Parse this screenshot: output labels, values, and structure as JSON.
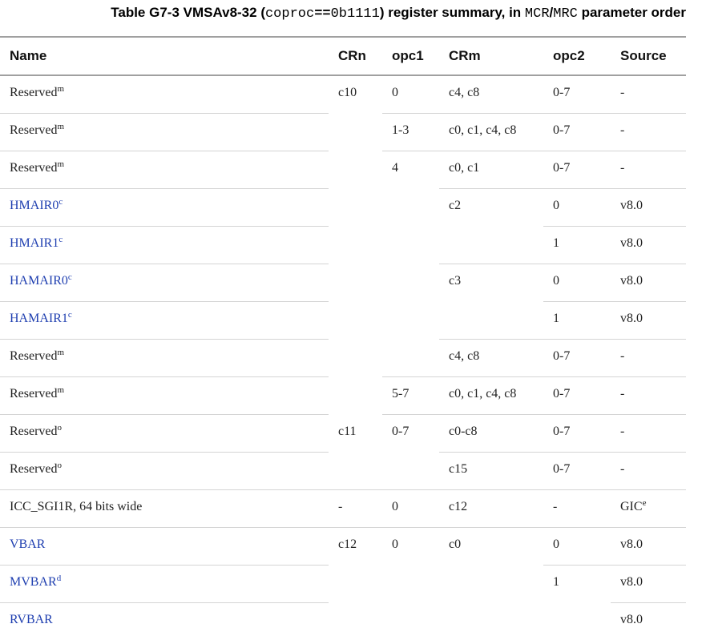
{
  "caption": {
    "prefix": "Table G7-3 VMSAv8-32 (",
    "code1": "coproc",
    "op": "==",
    "code2": "0b1111",
    "middle": ") register summary, in ",
    "code3": "MCR",
    "slash": "/",
    "code4": "MRC",
    "suffix": " parameter order"
  },
  "headers": {
    "name": "Name",
    "crn": "CRn",
    "opc1": "opc1",
    "crm": "CRm",
    "opc2": "opc2",
    "source": "Source"
  },
  "rows": [
    {
      "name": "Reserved",
      "sup": "m",
      "link": false,
      "crn": "c10",
      "opc1": "0",
      "crm": "c4, c8",
      "opc2": "0-7",
      "source": "-"
    },
    {
      "name": "Reserved",
      "sup": "m",
      "link": false,
      "crn": "",
      "opc1": "1-3",
      "crm": "c0, c1, c4, c8",
      "opc2": "0-7",
      "source": "-"
    },
    {
      "name": "Reserved",
      "sup": "m",
      "link": false,
      "crn": "",
      "opc1": "4",
      "crm": "c0, c1",
      "opc2": "0-7",
      "source": "-"
    },
    {
      "name": "HMAIR0",
      "sup": "c",
      "link": true,
      "crn": "",
      "opc1": "",
      "crm": "c2",
      "opc2": "0",
      "source": "v8.0"
    },
    {
      "name": "HMAIR1",
      "sup": "c",
      "link": true,
      "crn": "",
      "opc1": "",
      "crm": "",
      "opc2": "1",
      "source": "v8.0"
    },
    {
      "name": "HAMAIR0",
      "sup": "c",
      "link": true,
      "crn": "",
      "opc1": "",
      "crm": "c3",
      "opc2": "0",
      "source": "v8.0"
    },
    {
      "name": "HAMAIR1",
      "sup": "c",
      "link": true,
      "crn": "",
      "opc1": "",
      "crm": "",
      "opc2": "1",
      "source": "v8.0"
    },
    {
      "name": "Reserved",
      "sup": "m",
      "link": false,
      "crn": "",
      "opc1": "",
      "crm": "c4, c8",
      "opc2": "0-7",
      "source": "-"
    },
    {
      "name": "Reserved",
      "sup": "m",
      "link": false,
      "crn": "",
      "opc1": "5-7",
      "crm": "c0, c1, c4, c8",
      "opc2": "0-7",
      "source": "-"
    },
    {
      "name": "Reserved",
      "sup": "o",
      "link": false,
      "crn": "c11",
      "opc1": "0-7",
      "crm": "c0-c8",
      "opc2": "0-7",
      "source": "-"
    },
    {
      "name": "Reserved",
      "sup": "o",
      "link": false,
      "crn": "",
      "opc1": "",
      "crm": "c15",
      "opc2": "0-7",
      "source": "-"
    },
    {
      "name": "ICC_SGI1R, 64 bits wide",
      "sup": "",
      "link": false,
      "crn": "-",
      "opc1": "0",
      "crm": "c12",
      "opc2": "-",
      "source": "GIC",
      "source_sup": "e"
    },
    {
      "name": "VBAR",
      "sup": "",
      "link": true,
      "crn": "c12",
      "opc1": "0",
      "crm": "c0",
      "opc2": "0",
      "source": "v8.0"
    },
    {
      "name": "MVBAR",
      "sup": "d",
      "link": true,
      "crn": "",
      "opc1": "",
      "crm": "",
      "opc2": "1",
      "source": "v8.0"
    },
    {
      "name": "RVBAR",
      "sup": "",
      "link": true,
      "crn": "",
      "opc1": "",
      "crm": "",
      "opc2": "",
      "source": "v8.0"
    }
  ]
}
